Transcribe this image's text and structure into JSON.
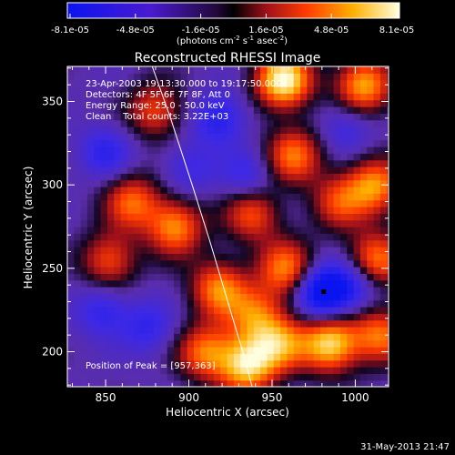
{
  "chart_data": {
    "type": "heatmap",
    "title": "Reconstructed RHESSI Image",
    "xlabel": "Heliocentric X (arcsec)",
    "ylabel": "Heliocentric Y (arcsec)",
    "xlim": [
      827,
      1020
    ],
    "ylim": [
      179,
      371
    ],
    "x_ticks": [
      850,
      900,
      950,
      1000
    ],
    "y_ticks": [
      200,
      250,
      300,
      350
    ],
    "colorbar": {
      "min": -8.1e-05,
      "max": 8.1e-05,
      "tick_labels": [
        "-8.1e-05",
        "-4.8e-05",
        "-1.6e-05",
        "1.6e-05",
        "4.8e-05",
        "8.1e-05"
      ],
      "unit_parts": {
        "pre": "(photons cm",
        "sup1": "-2",
        "mid1": " s",
        "sup2": "-1",
        "mid2": " asec",
        "sup3": "-2",
        "post": ")"
      }
    },
    "annotations": [
      "23-Apr-2003 19:13:30.000 to 19:17:50.000",
      "Detectors: 4F 5F 6F 7F 8F, Att 0",
      "Energy Range: 25.0 - 50.0 keV",
      "Clean    Total counts: 3.22E+03"
    ],
    "peak_label": "Position of Peak = [957,363]",
    "peak": [
      957,
      363
    ],
    "minimum_marker": [
      981,
      236
    ],
    "limb_curve": {
      "x": [
        878,
        889,
        902,
        913,
        924,
        933,
        938
      ],
      "y": [
        371,
        340,
        300,
        265,
        228,
        198,
        179
      ]
    },
    "hot_spots": [
      {
        "x": 957,
        "y": 363,
        "v": 1.0
      },
      {
        "x": 1005,
        "y": 360,
        "v": 0.72
      },
      {
        "x": 880,
        "y": 345,
        "v": 0.42
      },
      {
        "x": 963,
        "y": 318,
        "v": 0.55
      },
      {
        "x": 1012,
        "y": 300,
        "v": 0.62
      },
      {
        "x": 990,
        "y": 290,
        "v": 0.38
      },
      {
        "x": 938,
        "y": 283,
        "v": 0.45
      },
      {
        "x": 866,
        "y": 290,
        "v": 0.5
      },
      {
        "x": 892,
        "y": 275,
        "v": 0.62
      },
      {
        "x": 852,
        "y": 255,
        "v": 0.45
      },
      {
        "x": 1012,
        "y": 255,
        "v": 0.62
      },
      {
        "x": 918,
        "y": 238,
        "v": 0.6
      },
      {
        "x": 958,
        "y": 250,
        "v": 0.58
      },
      {
        "x": 940,
        "y": 222,
        "v": 0.45
      },
      {
        "x": 955,
        "y": 205,
        "v": 0.55
      },
      {
        "x": 935,
        "y": 192,
        "v": 0.82
      },
      {
        "x": 910,
        "y": 200,
        "v": 0.55
      },
      {
        "x": 985,
        "y": 205,
        "v": 0.85
      },
      {
        "x": 1015,
        "y": 210,
        "v": 0.55
      }
    ],
    "cold_spots": [
      {
        "x": 981,
        "y": 236,
        "v": -1.0
      },
      {
        "x": 918,
        "y": 340,
        "v": -0.55
      },
      {
        "x": 1000,
        "y": 240,
        "v": -0.5
      },
      {
        "x": 850,
        "y": 320,
        "v": -0.45
      },
      {
        "x": 848,
        "y": 225,
        "v": -0.45
      },
      {
        "x": 935,
        "y": 305,
        "v": -0.4
      },
      {
        "x": 875,
        "y": 215,
        "v": -0.42
      },
      {
        "x": 900,
        "y": 310,
        "v": -0.35
      },
      {
        "x": 995,
        "y": 335,
        "v": -0.35
      }
    ]
  },
  "footer": {
    "timestamp": "31-May-2013 21:47"
  }
}
